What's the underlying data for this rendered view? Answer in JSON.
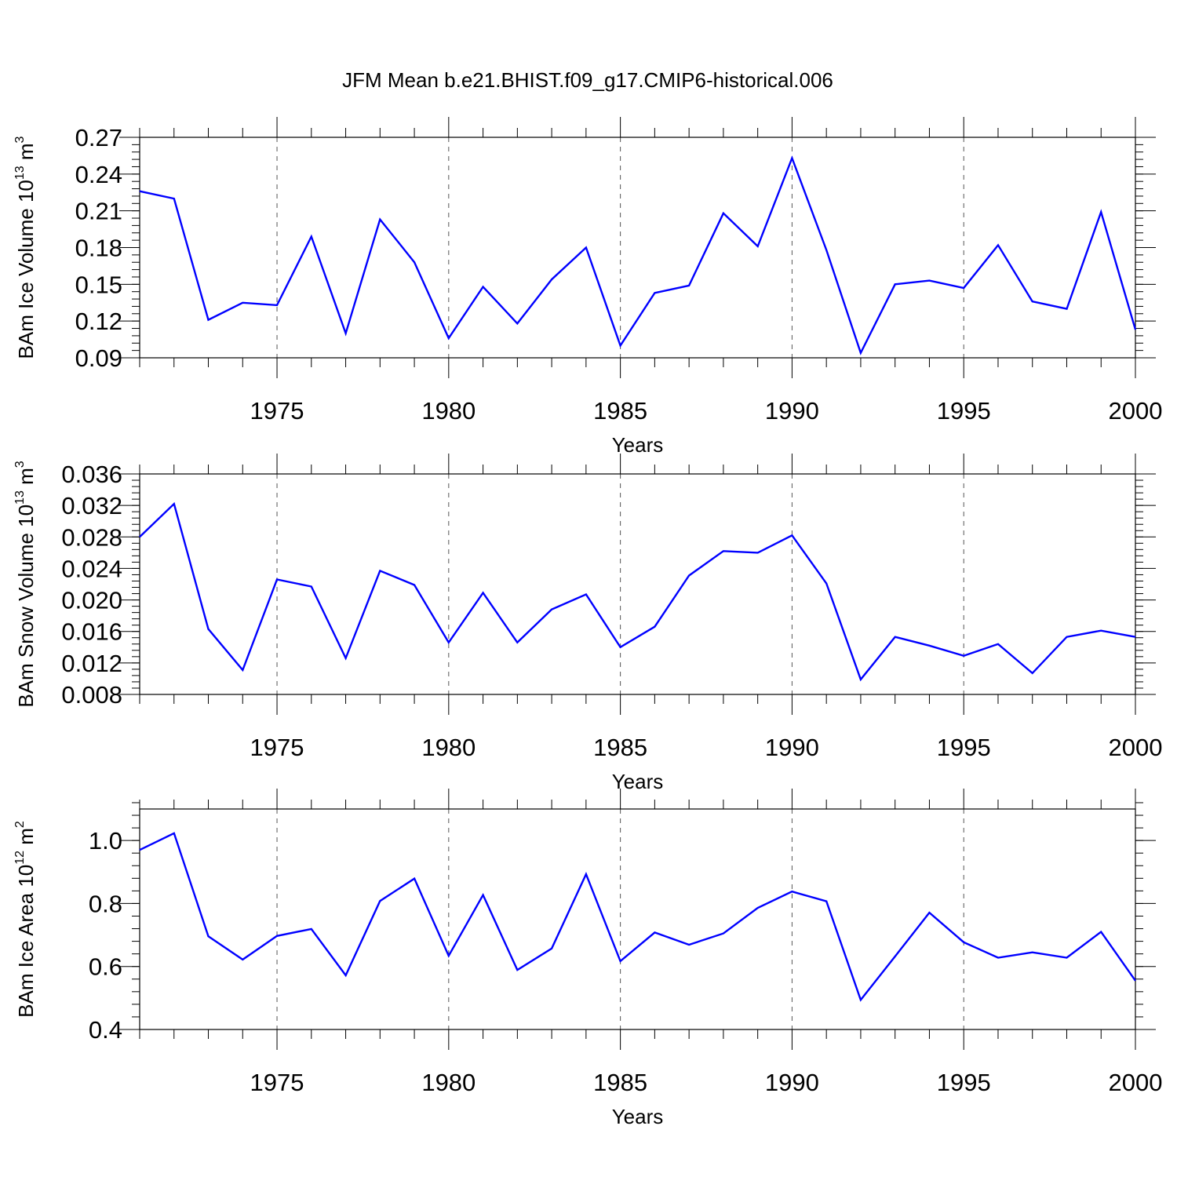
{
  "title": "JFM Mean b.e21.BHIST.f09_g17.CMIP6-historical.006",
  "line_color": "#0000ff",
  "chart_data": [
    {
      "type": "line",
      "xlabel": "Years",
      "ylabel_main": "BAm Ice Volume 10",
      "ylabel_exp": "13",
      "ylabel_unit": " m",
      "ylabel_unit_exp": "3",
      "xlim": [
        1971,
        2000
      ],
      "ylim": [
        0.09,
        0.27
      ],
      "yticks": [
        0.09,
        0.12,
        0.15,
        0.18,
        0.21,
        0.24,
        0.27
      ],
      "ytick_labels": [
        "0.09",
        "0.12",
        "0.15",
        "0.18",
        "0.21",
        "0.24",
        "0.27"
      ],
      "yminor_step": 0.006,
      "xticks": [
        1975,
        1980,
        1985,
        1990,
        1995,
        2000
      ],
      "xtick_labels": [
        "1975",
        "1980",
        "1985",
        "1990",
        "1995",
        "2000"
      ],
      "x": [
        1971,
        1972,
        1973,
        1974,
        1975,
        1976,
        1977,
        1978,
        1979,
        1980,
        1981,
        1982,
        1983,
        1984,
        1985,
        1986,
        1987,
        1988,
        1989,
        1990,
        1991,
        1992,
        1993,
        1994,
        1995,
        1996,
        1997,
        1998,
        1999,
        2000
      ],
      "values": [
        0.226,
        0.22,
        0.121,
        0.135,
        0.133,
        0.189,
        0.11,
        0.203,
        0.168,
        0.106,
        0.148,
        0.118,
        0.154,
        0.18,
        0.1,
        0.143,
        0.149,
        0.208,
        0.181,
        0.253,
        0.178,
        0.094,
        0.15,
        0.153,
        0.147,
        0.182,
        0.136,
        0.13,
        0.209,
        0.113
      ]
    },
    {
      "type": "line",
      "xlabel": "Years",
      "ylabel_main": "BAm Snow Volume 10",
      "ylabel_exp": "13",
      "ylabel_unit": " m",
      "ylabel_unit_exp": "3",
      "xlim": [
        1971,
        2000
      ],
      "ylim": [
        0.008,
        0.036
      ],
      "yticks": [
        0.008,
        0.012,
        0.016,
        0.02,
        0.024,
        0.028,
        0.032,
        0.036
      ],
      "ytick_labels": [
        "0.008",
        "0.012",
        "0.016",
        "0.020",
        "0.024",
        "0.028",
        "0.032",
        "0.036"
      ],
      "yminor_step": 0.0008,
      "xticks": [
        1975,
        1980,
        1985,
        1990,
        1995,
        2000
      ],
      "xtick_labels": [
        "1975",
        "1980",
        "1985",
        "1990",
        "1995",
        "2000"
      ],
      "x": [
        1971,
        1972,
        1973,
        1974,
        1975,
        1976,
        1977,
        1978,
        1979,
        1980,
        1981,
        1982,
        1983,
        1984,
        1985,
        1986,
        1987,
        1988,
        1989,
        1990,
        1991,
        1992,
        1993,
        1994,
        1995,
        1996,
        1997,
        1998,
        1999,
        2000
      ],
      "values": [
        0.028,
        0.0322,
        0.0163,
        0.0111,
        0.0226,
        0.0217,
        0.0126,
        0.0237,
        0.0219,
        0.0146,
        0.0209,
        0.0146,
        0.0188,
        0.0207,
        0.014,
        0.0166,
        0.0231,
        0.0262,
        0.026,
        0.0282,
        0.0221,
        0.0099,
        0.0153,
        0.0142,
        0.0129,
        0.0144,
        0.0107,
        0.0153,
        0.0161,
        0.0153
      ]
    },
    {
      "type": "line",
      "xlabel": "Years",
      "ylabel_main": "BAm Ice Area 10",
      "ylabel_exp": "12",
      "ylabel_unit": " m",
      "ylabel_unit_exp": "2",
      "xlim": [
        1971,
        2000
      ],
      "ylim": [
        0.4,
        1.1
      ],
      "yticks": [
        0.4,
        0.6,
        0.8,
        1.0
      ],
      "ytick_labels": [
        "0.4",
        "0.6",
        "0.8",
        "1.0"
      ],
      "yminor_step": 0.04,
      "xticks": [
        1975,
        1980,
        1985,
        1990,
        1995,
        2000
      ],
      "xtick_labels": [
        "1975",
        "1980",
        "1985",
        "1990",
        "1995",
        "2000"
      ],
      "x": [
        1971,
        1972,
        1973,
        1974,
        1975,
        1976,
        1977,
        1978,
        1979,
        1980,
        1981,
        1982,
        1983,
        1984,
        1985,
        1986,
        1987,
        1988,
        1989,
        1990,
        1991,
        1992,
        1993,
        1994,
        1995,
        1996,
        1997,
        1998,
        1999,
        2000
      ],
      "values": [
        0.97,
        1.023,
        0.696,
        0.622,
        0.697,
        0.719,
        0.572,
        0.808,
        0.879,
        0.634,
        0.827,
        0.589,
        0.657,
        0.893,
        0.617,
        0.708,
        0.669,
        0.705,
        0.786,
        0.838,
        0.807,
        0.494,
        0.632,
        0.771,
        0.677,
        0.628,
        0.645,
        0.628,
        0.71,
        0.555
      ]
    }
  ]
}
